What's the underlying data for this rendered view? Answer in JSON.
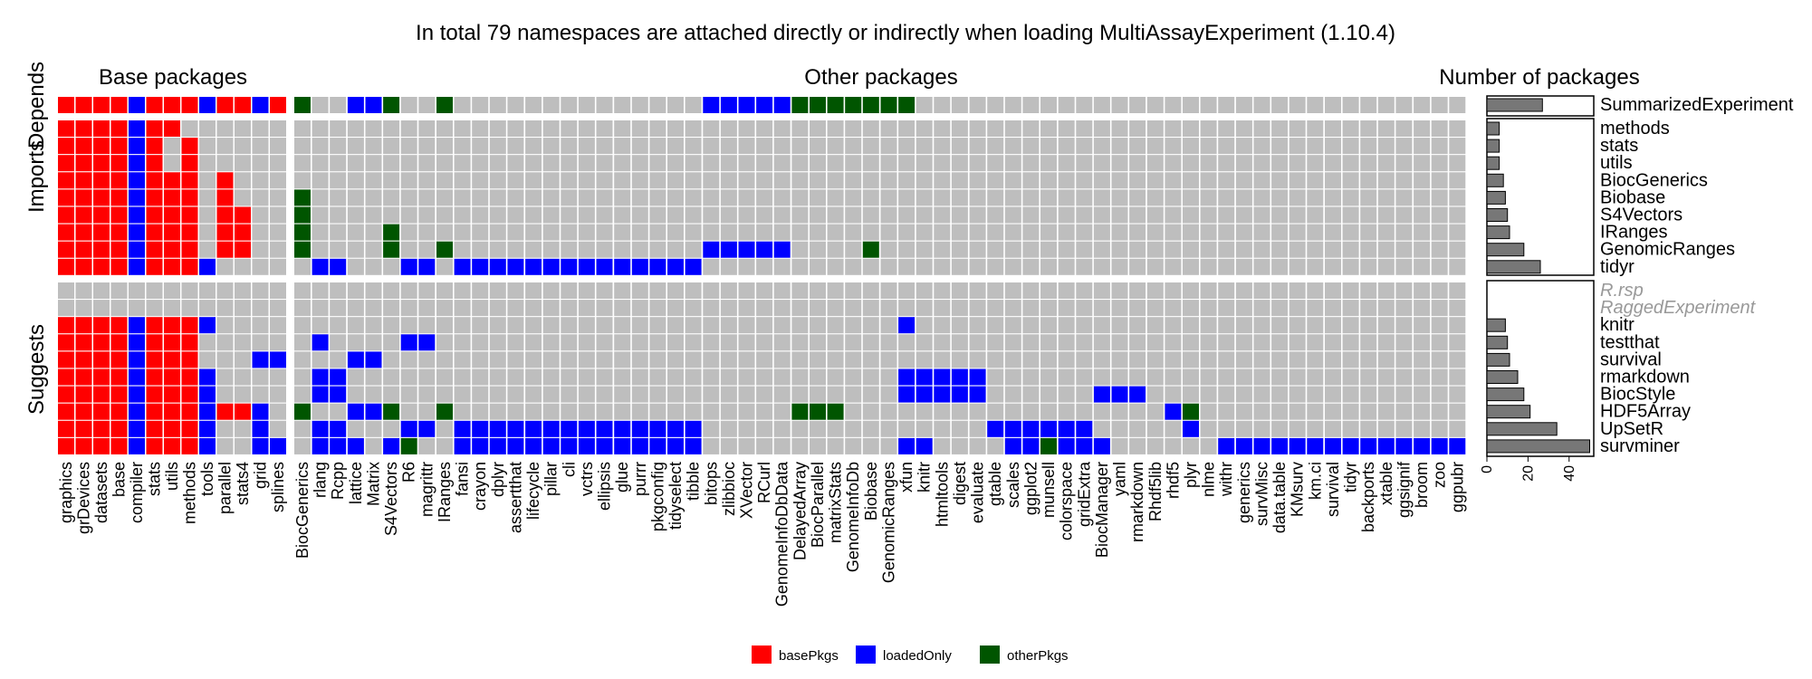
{
  "chart_data": {
    "type": "heatmap",
    "title": "In total 79 namespaces are attached directly or indirectly when loading MultiAssayExperiment (1.10.4)",
    "panels": {
      "base": "Base packages",
      "other": "Other packages",
      "bar": "Number of packages"
    },
    "groups": [
      "Depends",
      "Imports",
      "Suggests"
    ],
    "colors": {
      "basePkgs": "#ff0000",
      "loadedOnly": "#0000ff",
      "otherPkgs": "#005500",
      "empty": "#bebebe",
      "grid": "#ffffff",
      "bar": "#777777"
    },
    "legend": [
      {
        "key": "b",
        "label": "basePkgs",
        "color": "#ff0000"
      },
      {
        "key": "l",
        "label": "loadedOnly",
        "color": "#0000ff"
      },
      {
        "key": "o",
        "label": "otherPkgs",
        "color": "#005500"
      }
    ],
    "base_columns": [
      "graphics",
      "grDevices",
      "datasets",
      "base",
      "compiler",
      "stats",
      "utils",
      "methods",
      "tools",
      "parallel",
      "stats4",
      "grid",
      "splines"
    ],
    "other_columns": [
      "BiocGenerics",
      "rlang",
      "Rcpp",
      "lattice",
      "Matrix",
      "S4Vectors",
      "R6",
      "magrittr",
      "IRanges",
      "fansi",
      "crayon",
      "dplyr",
      "assertthat",
      "lifecycle",
      "pillar",
      "cli",
      "vctrs",
      "ellipsis",
      "glue",
      "purrr",
      "pkgconfig",
      "tidyselect",
      "tibble",
      "bitops",
      "zlibbioc",
      "XVector",
      "RCurl",
      "GenomeInfoDbData",
      "DelayedArray",
      "BiocParallel",
      "matrixStats",
      "GenomeInfoDb",
      "Biobase",
      "GenomicRanges",
      "xfun",
      "knitr",
      "htmltools",
      "digest",
      "evaluate",
      "gtable",
      "scales",
      "ggplot2",
      "munsell",
      "colorspace",
      "gridExtra",
      "BiocManager",
      "yaml",
      "rmarkdown",
      "Rhdf5lib",
      "rhdf5",
      "plyr",
      "nlme",
      "withr",
      "generics",
      "survMisc",
      "data.table",
      "KMsurv",
      "km.ci",
      "survival",
      "tidyr",
      "backports",
      "xtable",
      "ggsignif",
      "broom",
      "zoo",
      "ggpubr"
    ],
    "rows": [
      {
        "name": "SummarizedExperiment",
        "group": "Depends",
        "count": 27,
        "muted": false,
        "base": "bbbblbbblbblb",
        "other": "o..llo..o..............lllllooooooo................................"
      },
      {
        "name": "methods",
        "group": "Imports",
        "count": 6,
        "muted": false,
        "base": "bbbblbb......",
        "other": ".................................................................."
      },
      {
        "name": "stats",
        "group": "Imports",
        "count": 6,
        "muted": false,
        "base": "bbbblb.b.....",
        "other": ".................................................................."
      },
      {
        "name": "utils",
        "group": "Imports",
        "count": 6,
        "muted": false,
        "base": "bbbblb.b.....",
        "other": ".................................................................."
      },
      {
        "name": "BiocGenerics",
        "group": "Imports",
        "count": 8,
        "muted": false,
        "base": "bbbblbbb.b...",
        "other": ".................................................................."
      },
      {
        "name": "Biobase",
        "group": "Imports",
        "count": 9,
        "muted": false,
        "base": "bbbblbbb.b...",
        "other": "o................................................................."
      },
      {
        "name": "S4Vectors",
        "group": "Imports",
        "count": 10,
        "muted": false,
        "base": "bbbblbbb.bb..",
        "other": "o................................................................."
      },
      {
        "name": "IRanges",
        "group": "Imports",
        "count": 11,
        "muted": false,
        "base": "bbbblbbb.bb..",
        "other": "o....o............................................................"
      },
      {
        "name": "GenomicRanges",
        "group": "Imports",
        "count": 18,
        "muted": false,
        "base": "bbbblbbb.bb..",
        "other": "o....o..o..............lllll....o.................................."
      },
      {
        "name": "tidyr",
        "group": "Imports",
        "count": 26,
        "muted": false,
        "base": "bbbblbbbl....",
        "other": ".ll...ll.llllllllllllll..........................................."
      },
      {
        "name": "R.rsp",
        "group": "Suggests",
        "count": 0,
        "muted": true,
        "base": ".............",
        "other": ".................................................................."
      },
      {
        "name": "RaggedExperiment",
        "group": "Suggests",
        "count": 0,
        "muted": true,
        "base": ".............",
        "other": ".................................................................."
      },
      {
        "name": "knitr",
        "group": "Suggests",
        "count": 9,
        "muted": false,
        "base": "bbbblbbbl....",
        "other": "..................................l..............................."
      },
      {
        "name": "testthat",
        "group": "Suggests",
        "count": 10,
        "muted": false,
        "base": "bbbblbbb.....",
        "other": ".l....ll.........................................................."
      },
      {
        "name": "survival",
        "group": "Suggests",
        "count": 11,
        "muted": false,
        "base": "bbbblbbb...ll",
        "other": "...ll............................................................."
      },
      {
        "name": "rmarkdown",
        "group": "Suggests",
        "count": 15,
        "muted": false,
        "base": "bbbblbbbl....",
        "other": ".ll...............................lllll..........................."
      },
      {
        "name": "BiocStyle",
        "group": "Suggests",
        "count": 18,
        "muted": false,
        "base": "bbbblbbbl....",
        "other": ".ll...............................lllll......lll................."
      },
      {
        "name": "HDF5Array",
        "group": "Suggests",
        "count": 21,
        "muted": false,
        "base": "bbbblbbblbbl.",
        "other": "o..llo..o...................ooo..................lo..............."
      },
      {
        "name": "UpSetR",
        "group": "Suggests",
        "count": 34,
        "muted": false,
        "base": "bbbblbbbl..l.",
        "other": ".ll...ll.llllllllllllll................llllll.....l................"
      },
      {
        "name": "survminer",
        "group": "Suggests",
        "count": 50,
        "muted": false,
        "base": "bbbblbbbl..ll",
        "other": ".lll.lo..llllllllllllll...........ll....llolll......llllllllllllllo"
      }
    ],
    "x_axis": {
      "ticks": [
        0,
        20,
        40
      ],
      "xlim": [
        0,
        52
      ]
    }
  }
}
